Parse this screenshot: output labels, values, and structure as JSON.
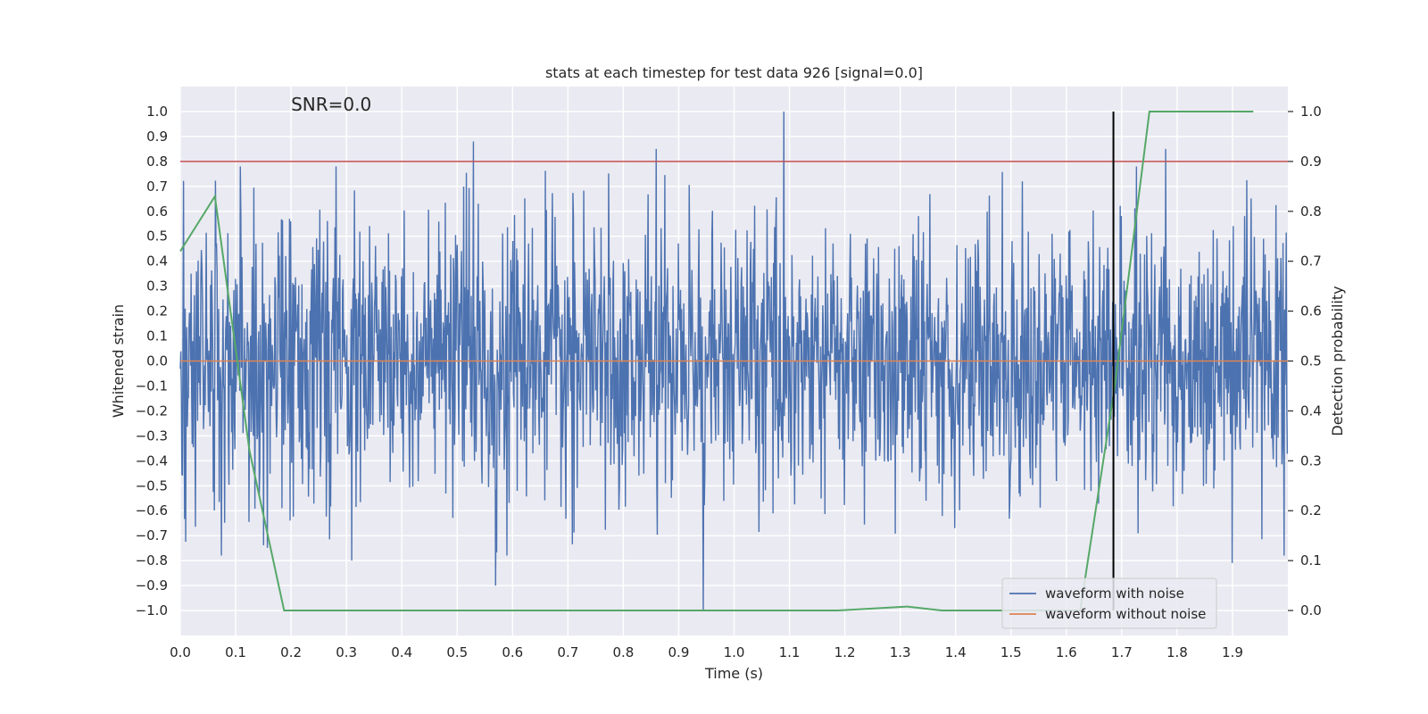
{
  "chart_data": {
    "type": "line",
    "title": "stats at each timestep for test data 926 [signal=0.0]",
    "xlabel": "Time (s)",
    "ylabel_left": "Whitened strain",
    "ylabel_right": "Detection probability",
    "annotation": "SNR=0.0",
    "xlim": [
      0.0,
      2.0
    ],
    "ylim_left": [
      -1.1,
      1.1
    ],
    "ylim_right": [
      -0.05,
      1.05
    ],
    "x_ticks": [
      "0.0",
      "0.1",
      "0.2",
      "0.3",
      "0.4",
      "0.5",
      "0.6",
      "0.7",
      "0.8",
      "0.9",
      "1.0",
      "1.1",
      "1.2",
      "1.3",
      "1.4",
      "1.5",
      "1.6",
      "1.7",
      "1.8",
      "1.9"
    ],
    "y_left_ticks": [
      "1.0",
      "0.9",
      "0.8",
      "0.7",
      "0.6",
      "0.5",
      "0.4",
      "0.3",
      "0.2",
      "0.1",
      "0.0",
      "−0.1",
      "−0.2",
      "−0.3",
      "−0.4",
      "−0.5",
      "−0.6",
      "−0.7",
      "−0.8",
      "−0.9",
      "−1.0"
    ],
    "y_right_ticks": [
      "1.0",
      "0.9",
      "0.8",
      "0.7",
      "0.6",
      "0.5",
      "0.4",
      "0.3",
      "0.2",
      "0.1",
      "0.0"
    ],
    "threshold_left": 0.8,
    "vertical_marker_x": 1.685,
    "vertical_marker_range": [
      -1.0,
      1.0
    ],
    "noise_series": {
      "name": "waveform with noise",
      "samples": 2048,
      "amplitude_range": [
        -1.0,
        1.0
      ],
      "notable_peaks": [
        {
          "x": 1.09,
          "y": 1.0
        },
        {
          "x": 0.53,
          "y": 0.88
        },
        {
          "x": 0.86,
          "y": 0.85
        },
        {
          "x": 1.78,
          "y": 0.85
        },
        {
          "x": 0.945,
          "y": -1.0
        },
        {
          "x": 0.57,
          "y": -0.9
        },
        {
          "x": 0.31,
          "y": -0.8
        },
        {
          "x": 1.9,
          "y": -0.81
        }
      ]
    },
    "clean_series": {
      "name": "waveform without noise",
      "value": 0.0
    },
    "probability_series": {
      "name": "detection probability",
      "x": [
        0.0,
        0.0625,
        0.125,
        0.1875,
        0.25,
        1.1875,
        1.3125,
        1.375,
        1.5,
        1.625,
        1.6875,
        1.75,
        1.9375
      ],
      "y": [
        0.72,
        0.83,
        0.32,
        0.0,
        0.0,
        0.0,
        0.008,
        0.0,
        0.0,
        0.0,
        0.45,
        1.0,
        1.0
      ]
    },
    "legend": [
      {
        "label": "waveform with noise",
        "color": "#4c72b0"
      },
      {
        "label": "waveform without noise",
        "color": "#dd8452"
      }
    ],
    "legend_position": "lower-right",
    "colors": {
      "background": "#eaeaf2",
      "grid": "#ffffff",
      "noise": "#4c72b0",
      "clean": "#dd8452",
      "probability": "#55a868",
      "threshold": "#c44e52",
      "marker": "#000000"
    }
  }
}
